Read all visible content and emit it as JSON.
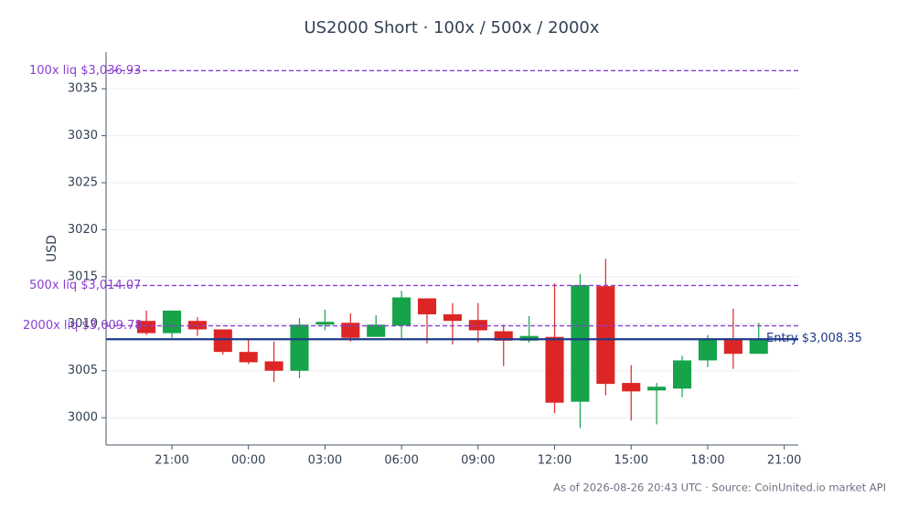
{
  "chart_data": {
    "type": "candlestick",
    "title": "US2000 Short · 100x / 500x / 2000x",
    "ylabel": "USD",
    "footer": "As of 2026-08-26 20:43 UTC · Source: CoinUnited.io market API",
    "x": [
      20,
      21,
      22,
      23,
      24,
      25,
      26,
      27,
      28,
      29,
      30,
      31,
      32,
      33,
      34,
      35,
      36,
      37,
      38,
      39,
      40,
      41,
      42,
      43,
      44
    ],
    "open": [
      3010.3,
      3009.0,
      3010.3,
      3009.4,
      3007.0,
      3006.0,
      3005.0,
      3009.9,
      3010.1,
      3008.6,
      3009.8,
      3012.7,
      3011.0,
      3010.4,
      3009.2,
      3008.2,
      3008.6,
      3001.7,
      3014.0,
      3003.7,
      3002.9,
      3003.1,
      3006.1,
      3008.3,
      3006.8
    ],
    "high": [
      3011.4,
      3011.4,
      3010.7,
      3009.4,
      3008.3,
      3008.1,
      3010.6,
      3011.5,
      3011.1,
      3010.9,
      3013.5,
      3012.7,
      3012.2,
      3012.2,
      3009.9,
      3010.8,
      3014.3,
      3015.3,
      3016.9,
      3005.6,
      3003.7,
      3006.6,
      3008.8,
      3011.6,
      3010.1
    ],
    "low": [
      3008.8,
      3008.5,
      3008.7,
      3006.7,
      3005.7,
      3003.8,
      3004.2,
      3009.3,
      3008.1,
      3008.6,
      3008.5,
      3007.9,
      3007.8,
      3008.0,
      3005.5,
      3008.0,
      3000.5,
      2998.9,
      3002.4,
      2999.7,
      2999.3,
      3002.2,
      3005.4,
      3005.2,
      3006.8
    ],
    "close": [
      3009.0,
      3011.4,
      3009.4,
      3007.0,
      3005.9,
      3005.0,
      3009.9,
      3010.2,
      3008.5,
      3009.9,
      3012.8,
      3011.0,
      3010.3,
      3009.3,
      3008.2,
      3008.7,
      3001.6,
      3014.1,
      3003.6,
      3002.8,
      3003.3,
      3006.1,
      3008.4,
      3006.8,
      3008.3
    ],
    "up_color": "#16a34a",
    "down_color": "#dc2626",
    "xlim": [
      18.42,
      45.55
    ],
    "xticks": [
      {
        "value": 21,
        "label": "21:00"
      },
      {
        "value": 24,
        "label": "00:00"
      },
      {
        "value": 27,
        "label": "03:00"
      },
      {
        "value": 30,
        "label": "06:00"
      },
      {
        "value": 33,
        "label": "09:00"
      },
      {
        "value": 36,
        "label": "12:00"
      },
      {
        "value": 39,
        "label": "15:00"
      },
      {
        "value": 42,
        "label": "18:00"
      },
      {
        "value": 45,
        "label": "21:00"
      }
    ],
    "ylim": [
      2997.1,
      3038.9
    ],
    "yticks": [
      3000,
      3005,
      3010,
      3015,
      3020,
      3025,
      3030,
      3035
    ],
    "grid": true,
    "levels": [
      {
        "label": "100x liq $3,036.93",
        "value": 3036.93,
        "color": "#8b3fd1",
        "style": "dashed"
      },
      {
        "label": "500x liq $3,014.07",
        "value": 3014.07,
        "color": "#8b3fd1",
        "style": "dashed"
      },
      {
        "label": "2000x liq $3,009.78",
        "value": 3009.78,
        "color": "#8b3fd1",
        "style": "dashed"
      },
      {
        "label": "Entry $3,008.35",
        "value": 3008.35,
        "color": "#1e3a8a",
        "style": "solid"
      }
    ]
  }
}
